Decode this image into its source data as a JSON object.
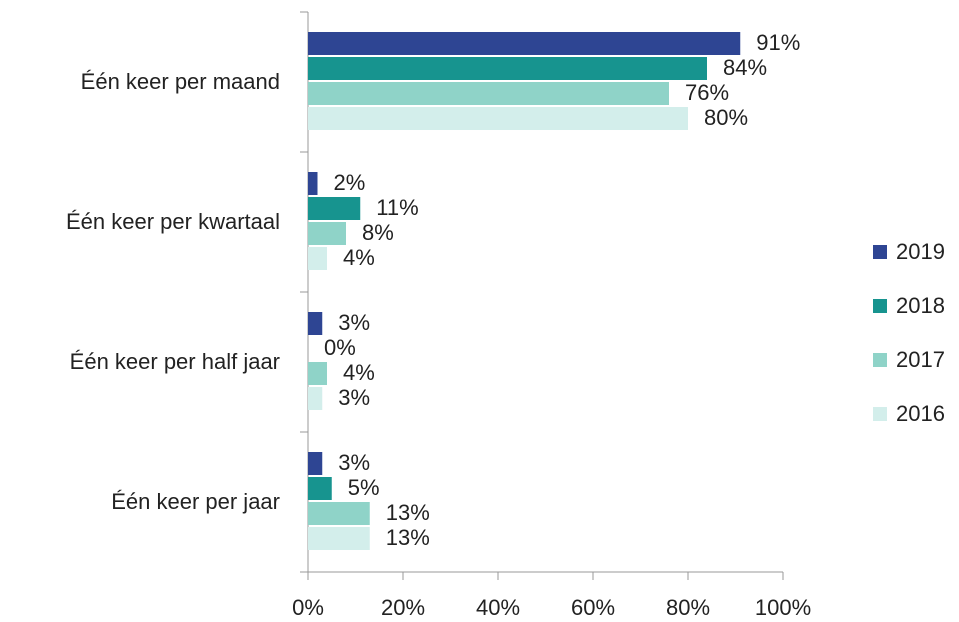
{
  "chart_data": {
    "type": "bar",
    "orientation": "horizontal",
    "categories": [
      "Één keer per maand",
      "Één keer per kwartaal",
      "Één keer per half jaar",
      "Één keer per jaar"
    ],
    "series": [
      {
        "name": "2019",
        "color": "#2e4593",
        "values": [
          91,
          2,
          3,
          3
        ],
        "value_labels": [
          "91%",
          "2%",
          "3%",
          "3%"
        ]
      },
      {
        "name": "2018",
        "color": "#17948f",
        "values": [
          84,
          11,
          0,
          5
        ],
        "value_labels": [
          "84%",
          "11%",
          "0%",
          "5%"
        ]
      },
      {
        "name": "2017",
        "color": "#8fd3c8",
        "values": [
          76,
          8,
          4,
          13
        ],
        "value_labels": [
          "76%",
          "8%",
          "4%",
          "13%"
        ]
      },
      {
        "name": "2016",
        "color": "#d3eeeb",
        "values": [
          80,
          4,
          3,
          13
        ],
        "value_labels": [
          "80%",
          "4%",
          "3%",
          "13%"
        ]
      }
    ],
    "xlim": [
      0,
      100
    ],
    "xticks": [
      {
        "value": 0,
        "label": "0%"
      },
      {
        "value": 20,
        "label": "20%"
      },
      {
        "value": 40,
        "label": "40%"
      },
      {
        "value": 60,
        "label": "60%"
      },
      {
        "value": 80,
        "label": "80%"
      },
      {
        "value": 100,
        "label": "100%"
      }
    ],
    "legend": "right"
  }
}
